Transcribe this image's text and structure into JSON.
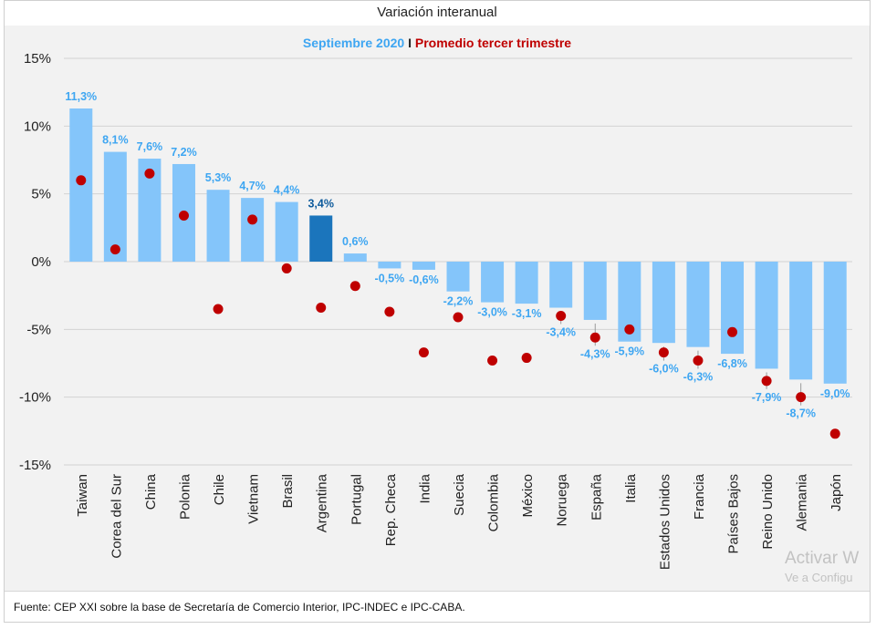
{
  "window": {
    "title": "Variación interanual"
  },
  "chart_data": {
    "type": "bar",
    "title": "Variación interanual",
    "subtitle": {
      "part1": "Septiembre 2020",
      "separator": " I ",
      "part2": "Promedio tercer trimestre"
    },
    "xlabel": "",
    "ylabel": "",
    "ylim": [
      -15,
      15
    ],
    "yticks": [
      {
        "value": 15,
        "label": "15%"
      },
      {
        "value": 10,
        "label": "10%"
      },
      {
        "value": 5,
        "label": "5%"
      },
      {
        "value": 0,
        "label": "0%"
      },
      {
        "value": -5,
        "label": "-5%"
      },
      {
        "value": -10,
        "label": "-10%"
      },
      {
        "value": -15,
        "label": "-15%"
      }
    ],
    "grid": true,
    "highlight_category": "Argentina",
    "categories": [
      "Taiwan",
      "Corea del Sur",
      "China",
      "Polonia",
      "Chile",
      "Vietnam",
      "Brasil",
      "Argentina",
      "Portugal",
      "Rep. Checa",
      "India",
      "Suecia",
      "Colombia",
      "México",
      "Noruega",
      "España",
      "Italia",
      "Estados Unidos",
      "Francia",
      "Países Bajos",
      "Reino Unido",
      "Alemania",
      "Japón"
    ],
    "series": [
      {
        "name": "Septiembre 2020",
        "kind": "bar",
        "values": [
          11.3,
          8.1,
          7.6,
          7.2,
          5.3,
          4.7,
          4.4,
          3.4,
          0.6,
          -0.5,
          -0.6,
          -2.2,
          -3.0,
          -3.1,
          -3.4,
          -4.3,
          -5.9,
          -6.0,
          -6.3,
          -6.8,
          -7.9,
          -8.7,
          -9.0
        ],
        "labels": [
          "11,3%",
          "8,1%",
          "7,6%",
          "7,2%",
          "5,3%",
          "4,7%",
          "4,4%",
          "3,4%",
          "0,6%",
          "-0,5%",
          "-0,6%",
          "-2,2%",
          "-3,0%",
          "-3,1%",
          "-3,4%",
          "-4,3%",
          "-5,9%",
          "-6,0%",
          "-6,3%",
          "-6,8%",
          "-7,9%",
          "-8,7%",
          "-9,0%"
        ]
      },
      {
        "name": "Promedio tercer trimestre",
        "kind": "dot",
        "values": [
          6.0,
          0.9,
          6.5,
          3.4,
          -3.5,
          3.1,
          -0.5,
          -3.4,
          -1.8,
          -3.7,
          -6.7,
          -4.1,
          -7.3,
          -7.1,
          -4.0,
          -5.6,
          -5.0,
          -6.7,
          -7.3,
          -5.2,
          -8.8,
          -10.0,
          -12.7
        ]
      }
    ],
    "colors": {
      "bar": "#84c5fa",
      "bar_highlight": "#1b75bc",
      "label": "#3ea6f2",
      "label_highlight": "#0e5b9c",
      "dot": "#bf0000",
      "grid": "#d3d3d3",
      "panel": "#f2f2f2"
    }
  },
  "footer": {
    "source": "Fuente: CEP XXI sobre la base de Secretaría de Comercio Interior, IPC-INDEC e IPC-CABA."
  },
  "watermark": {
    "line1": "Activar W",
    "line2": "Ve a Configu"
  }
}
